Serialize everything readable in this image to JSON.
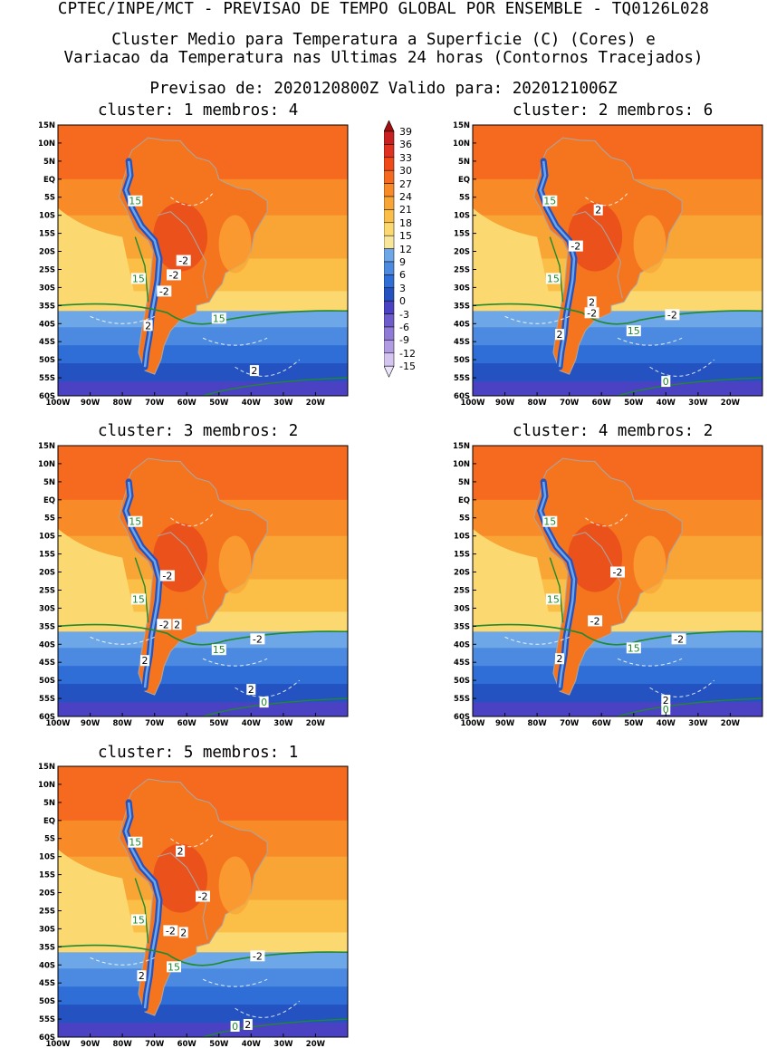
{
  "header": {
    "line0": "CPTEC/INPE/MCT - PREVISAO DE TEMPO GLOBAL POR ENSEMBLE - TQ0126L028",
    "line1": "Cluster Medio para Temperatura a Superficie (C) (Cores) e",
    "line2": "Variacao da Temperatura nas Ultimas 24 horas (Contornos Tracejados)",
    "line3": "Previsao de: 2020120800Z   Valido para: 2020121006Z"
  },
  "panels": [
    {
      "title": "cluster: 1  membros: 4",
      "labels": [
        "15",
        "15",
        "15",
        "-2",
        "-2",
        "-2",
        "2",
        "2"
      ]
    },
    {
      "title": "cluster: 2  membros: 6",
      "labels": [
        "15",
        "15",
        "15",
        "2",
        "-2",
        "-2",
        "-2",
        "2",
        "2",
        "0"
      ]
    },
    {
      "title": "cluster: 3  membros: 2",
      "labels": [
        "15",
        "15",
        "15",
        "-2",
        "-2",
        "2",
        "-2",
        "2",
        "2",
        "0"
      ]
    },
    {
      "title": "cluster: 4  membros: 2",
      "labels": [
        "15",
        "15",
        "15",
        "-2",
        "-2",
        "-2",
        "2",
        "2",
        "0"
      ]
    },
    {
      "title": "cluster: 5  membros: 1",
      "labels": [
        "15",
        "15",
        "15",
        "2",
        "-2",
        "-2",
        "2",
        "-2",
        "2",
        "2",
        "0"
      ]
    }
  ],
  "axes": {
    "lat_ticks": [
      "15N",
      "10N",
      "5N",
      "EQ",
      "5S",
      "10S",
      "15S",
      "20S",
      "25S",
      "30S",
      "35S",
      "40S",
      "45S",
      "50S",
      "55S",
      "60S"
    ],
    "lon_ticks": [
      "100W",
      "90W",
      "80W",
      "70W",
      "60W",
      "50W",
      "40W",
      "30W",
      "20W"
    ]
  },
  "colorbar": {
    "labels": [
      "39",
      "36",
      "33",
      "30",
      "27",
      "24",
      "21",
      "18",
      "15",
      "12",
      "9",
      "6",
      "3",
      "0",
      "-3",
      "-6",
      "-9",
      "-12",
      "-15"
    ],
    "colors": [
      "#a01010",
      "#c82020",
      "#e03020",
      "#f04a18",
      "#f56a1e",
      "#f88a28",
      "#f9a535",
      "#fbbf48",
      "#fcd970",
      "#f8e79a",
      "#6da7e8",
      "#4b8ae0",
      "#2f6ed6",
      "#2452c0",
      "#4a42c2",
      "#6e5ccc",
      "#8f7ad8",
      "#b19be2",
      "#d4c4f0",
      "#ece4fa"
    ]
  }
}
